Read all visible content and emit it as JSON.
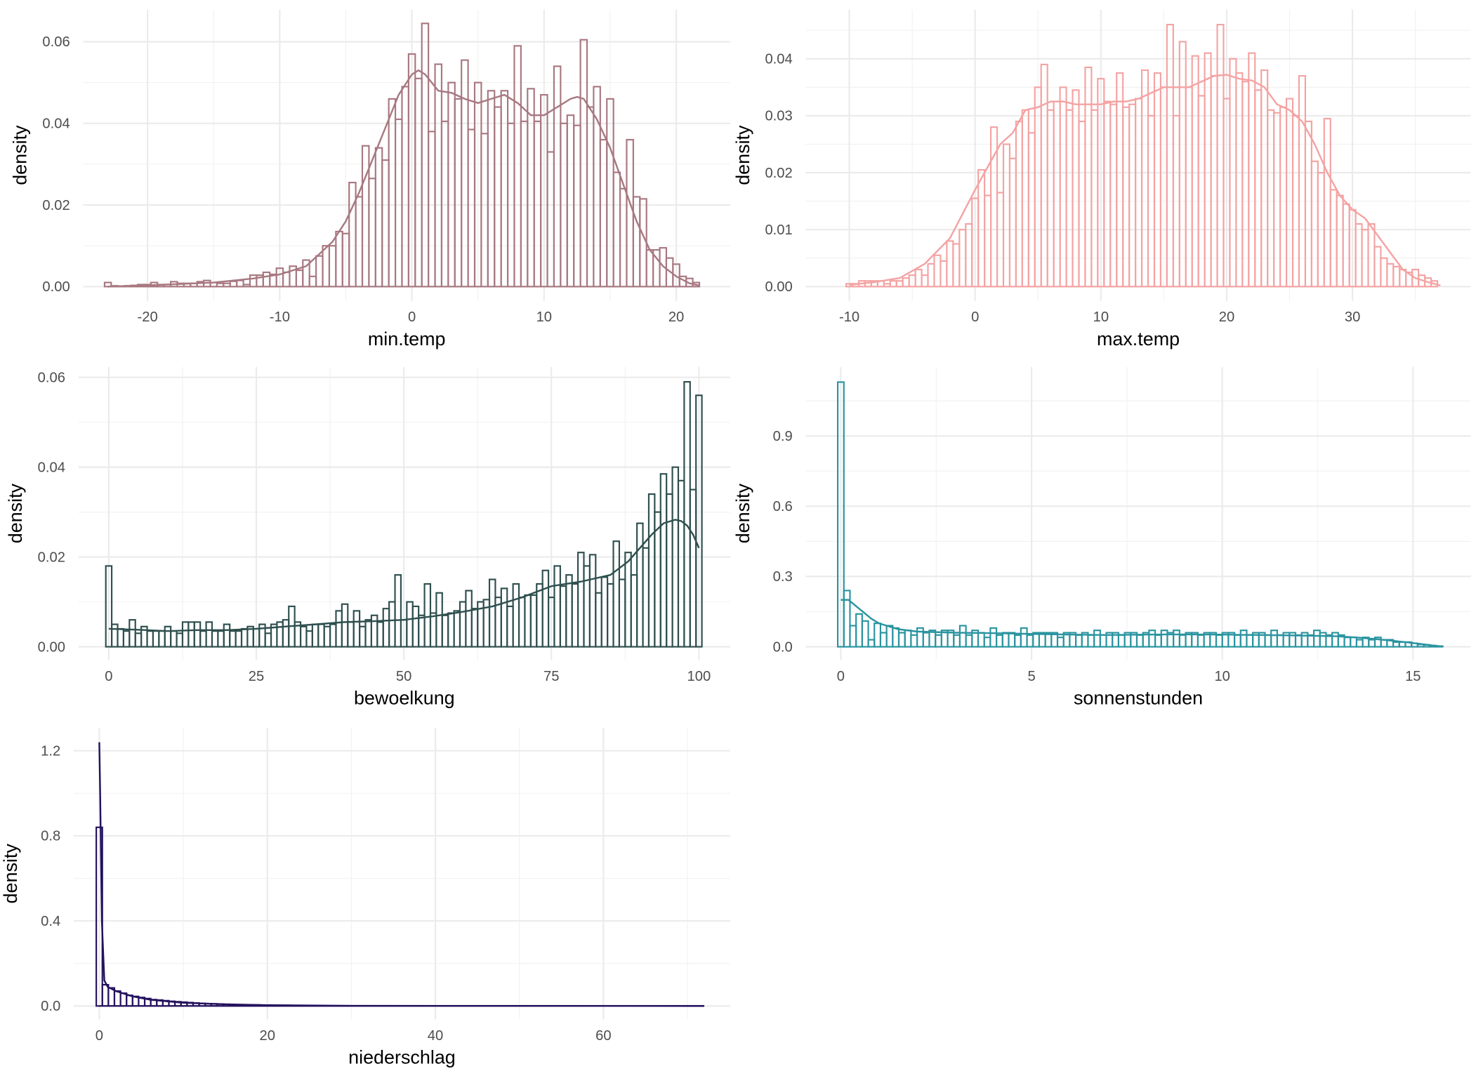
{
  "chart_data": [
    {
      "type": "histogram+density",
      "xlabel": "min.temp",
      "ylabel": "density",
      "color": "#a87880",
      "x_ticks": [
        -20,
        -10,
        0,
        10,
        20
      ],
      "x_tick_labels": [
        "-20",
        "-10",
        "0",
        "10",
        "20"
      ],
      "y_ticks": [
        0,
        0.02,
        0.04,
        0.06
      ],
      "y_tick_labels": [
        "0.00",
        "0.02",
        "0.04",
        "0.06"
      ],
      "bin_start": -23.25,
      "bin_width": 0.5,
      "values": [
        0.001,
        0.0002,
        0.0001,
        0.0002,
        0.0003,
        0.0005,
        0.0005,
        0.001,
        0.0005,
        0.0005,
        0.0012,
        0.0008,
        0.0008,
        0.0008,
        0.0012,
        0.0015,
        0.001,
        0.0008,
        0.0008,
        0.0013,
        0.0015,
        0.0005,
        0.0028,
        0.0028,
        0.0035,
        0.003,
        0.0045,
        0.0035,
        0.005,
        0.004,
        0.0065,
        0.0025,
        0.0075,
        0.01,
        0.01,
        0.0135,
        0.013,
        0.0255,
        0.022,
        0.0345,
        0.0265,
        0.034,
        0.031,
        0.046,
        0.041,
        0.049,
        0.057,
        0.051,
        0.0645,
        0.038,
        0.0545,
        0.0405,
        0.05,
        0.046,
        0.0555,
        0.0385,
        0.05,
        0.0375,
        0.048,
        0.044,
        0.048,
        0.04,
        0.059,
        0.0405,
        0.0485,
        0.0405,
        0.047,
        0.033,
        0.054,
        0.04,
        0.042,
        0.0395,
        0.0605,
        0.044,
        0.049,
        0.036,
        0.046,
        0.028,
        0.024,
        0.036,
        0.022,
        0.0215,
        0.009,
        0.009,
        0.0095,
        0.007,
        0.0055,
        0.0025,
        0.002,
        0.001
      ],
      "density_curve": [
        [
          -23,
          0
        ],
        [
          -20,
          0.0003
        ],
        [
          -15,
          0.001
        ],
        [
          -12,
          0.002
        ],
        [
          -10,
          0.003
        ],
        [
          -8,
          0.005
        ],
        [
          -7,
          0.008
        ],
        [
          -6,
          0.011
        ],
        [
          -5,
          0.016
        ],
        [
          -4,
          0.023
        ],
        [
          -3,
          0.031
        ],
        [
          -2,
          0.039
        ],
        [
          -1,
          0.047
        ],
        [
          0,
          0.052
        ],
        [
          0.5,
          0.053
        ],
        [
          1,
          0.052
        ],
        [
          2,
          0.048
        ],
        [
          3,
          0.0475
        ],
        [
          4,
          0.046
        ],
        [
          5,
          0.045
        ],
        [
          6,
          0.046
        ],
        [
          7,
          0.047
        ],
        [
          8,
          0.045
        ],
        [
          9,
          0.042
        ],
        [
          10,
          0.042
        ],
        [
          11,
          0.044
        ],
        [
          12,
          0.046
        ],
        [
          12.5,
          0.0465
        ],
        [
          13,
          0.046
        ],
        [
          14,
          0.041
        ],
        [
          15,
          0.034
        ],
        [
          16,
          0.025
        ],
        [
          17,
          0.016
        ],
        [
          18,
          0.009
        ],
        [
          19,
          0.005
        ],
        [
          20,
          0.0025
        ],
        [
          21,
          0.0008
        ],
        [
          21.7,
          0.0003
        ]
      ]
    },
    {
      "type": "histogram+density",
      "xlabel": "max.temp",
      "ylabel": "density",
      "color": "#f4a3a3",
      "x_ticks": [
        -10,
        0,
        10,
        20,
        30
      ],
      "x_tick_labels": [
        "-10",
        "0",
        "10",
        "20",
        "30"
      ],
      "y_ticks": [
        0,
        0.01,
        0.02,
        0.03,
        0.04
      ],
      "y_tick_labels": [
        "0.00",
        "0.01",
        "0.02",
        "0.03",
        "0.04"
      ],
      "bin_start": -10.25,
      "bin_width": 0.5,
      "values": [
        0.0005,
        0.0005,
        0.001,
        0.001,
        0.001,
        0.001,
        0.0005,
        0.001,
        0.001,
        0.0015,
        0.002,
        0.003,
        0.002,
        0.004,
        0.0055,
        0.0045,
        0.008,
        0.0075,
        0.01,
        0.011,
        0.0155,
        0.0205,
        0.016,
        0.028,
        0.0165,
        0.025,
        0.0225,
        0.029,
        0.031,
        0.027,
        0.035,
        0.039,
        0.031,
        0.0325,
        0.035,
        0.031,
        0.0345,
        0.029,
        0.0385,
        0.031,
        0.0365,
        0.0325,
        0.032,
        0.0375,
        0.0315,
        0.032,
        0.033,
        0.038,
        0.03,
        0.0375,
        0.035,
        0.046,
        0.03,
        0.043,
        0.035,
        0.0405,
        0.0335,
        0.041,
        0.037,
        0.046,
        0.033,
        0.04,
        0.0375,
        0.036,
        0.041,
        0.0345,
        0.038,
        0.031,
        0.0305,
        0.0315,
        0.033,
        0.03,
        0.037,
        0.029,
        0.022,
        0.02,
        0.0295,
        0.017,
        0.016,
        0.0145,
        0.0135,
        0.011,
        0.01,
        0.011,
        0.007,
        0.005,
        0.004,
        0.0035,
        0.003,
        0.0025,
        0.003,
        0.002,
        0.0015,
        0.001
      ],
      "density_curve": [
        [
          -10,
          0.0003
        ],
        [
          -8,
          0.0008
        ],
        [
          -6,
          0.0015
        ],
        [
          -4,
          0.004
        ],
        [
          -2,
          0.0085
        ],
        [
          0,
          0.017
        ],
        [
          1,
          0.021
        ],
        [
          2,
          0.025
        ],
        [
          3,
          0.027
        ],
        [
          4,
          0.031
        ],
        [
          5,
          0.0315
        ],
        [
          6,
          0.0325
        ],
        [
          7,
          0.0325
        ],
        [
          8,
          0.032
        ],
        [
          9,
          0.032
        ],
        [
          10,
          0.032
        ],
        [
          11,
          0.0325
        ],
        [
          12,
          0.0325
        ],
        [
          13,
          0.033
        ],
        [
          14,
          0.034
        ],
        [
          15,
          0.035
        ],
        [
          16,
          0.035
        ],
        [
          17,
          0.035
        ],
        [
          18,
          0.036
        ],
        [
          19,
          0.037
        ],
        [
          20,
          0.0372
        ],
        [
          21,
          0.0365
        ],
        [
          22,
          0.0362
        ],
        [
          23,
          0.035
        ],
        [
          24,
          0.032
        ],
        [
          25,
          0.031
        ],
        [
          26,
          0.029
        ],
        [
          27,
          0.025
        ],
        [
          28,
          0.02
        ],
        [
          29,
          0.016
        ],
        [
          30,
          0.0135
        ],
        [
          31,
          0.012
        ],
        [
          32,
          0.009
        ],
        [
          33,
          0.006
        ],
        [
          34,
          0.003
        ],
        [
          35,
          0.0015
        ],
        [
          36,
          0.0008
        ],
        [
          37,
          0.0002
        ]
      ]
    },
    {
      "type": "histogram+density",
      "xlabel": "bewoelkung",
      "ylabel": "density",
      "color": "#2f4f4f",
      "x_ticks": [
        0,
        25,
        50,
        75,
        100
      ],
      "x_tick_labels": [
        "0",
        "25",
        "50",
        "75",
        "100"
      ],
      "y_ticks": [
        0,
        0.02,
        0.04,
        0.06
      ],
      "y_tick_labels": [
        "0.00",
        "0.02",
        "0.04",
        "0.06"
      ],
      "bin_start": -0.5,
      "bin_width": 1,
      "values": [
        0.018,
        0.005,
        0.004,
        0.0035,
        0.006,
        0.003,
        0.0045,
        0.0035,
        0.0035,
        0.0035,
        0.0045,
        0.0035,
        0.003,
        0.0055,
        0.0055,
        0.0055,
        0.0035,
        0.0055,
        0.0035,
        0.0035,
        0.005,
        0.0035,
        0.0035,
        0.004,
        0.0045,
        0.004,
        0.005,
        0.003,
        0.005,
        0.0055,
        0.006,
        0.009,
        0.0055,
        0.0045,
        0.0035,
        0.005,
        0.005,
        0.0045,
        0.005,
        0.008,
        0.0095,
        0.0055,
        0.008,
        0.0045,
        0.006,
        0.007,
        0.0055,
        0.0085,
        0.01,
        0.016,
        0.006,
        0.01,
        0.009,
        0.007,
        0.014,
        0.0075,
        0.012,
        0.007,
        0.0075,
        0.008,
        0.01,
        0.0125,
        0.0085,
        0.01,
        0.0105,
        0.015,
        0.011,
        0.013,
        0.009,
        0.014,
        0.011,
        0.0115,
        0.0115,
        0.014,
        0.017,
        0.011,
        0.018,
        0.0135,
        0.016,
        0.014,
        0.021,
        0.018,
        0.0205,
        0.012,
        0.0155,
        0.014,
        0.0235,
        0.015,
        0.021,
        0.016,
        0.0275,
        0.022,
        0.034,
        0.03,
        0.0385,
        0.034,
        0.04,
        0.037,
        0.059,
        0.035,
        0.056
      ],
      "density_curve": [
        [
          0,
          0.004
        ],
        [
          5,
          0.0038
        ],
        [
          10,
          0.0035
        ],
        [
          15,
          0.0037
        ],
        [
          20,
          0.0037
        ],
        [
          25,
          0.004
        ],
        [
          30,
          0.0045
        ],
        [
          35,
          0.005
        ],
        [
          40,
          0.0055
        ],
        [
          45,
          0.0057
        ],
        [
          50,
          0.006
        ],
        [
          55,
          0.0068
        ],
        [
          60,
          0.0078
        ],
        [
          65,
          0.009
        ],
        [
          70,
          0.011
        ],
        [
          75,
          0.0135
        ],
        [
          80,
          0.0145
        ],
        [
          85,
          0.016
        ],
        [
          88,
          0.019
        ],
        [
          90,
          0.022
        ],
        [
          92,
          0.025
        ],
        [
          94,
          0.0275
        ],
        [
          96,
          0.0283
        ],
        [
          97,
          0.028
        ],
        [
          98,
          0.027
        ],
        [
          99,
          0.025
        ],
        [
          100,
          0.022
        ]
      ]
    },
    {
      "type": "histogram+density",
      "xlabel": "sonnenstunden",
      "ylabel": "density",
      "color": "#2a94a0",
      "x_ticks": [
        0,
        5,
        10,
        15
      ],
      "x_tick_labels": [
        "0",
        "5",
        "10",
        "15"
      ],
      "y_ticks": [
        0,
        0.3,
        0.6,
        0.9
      ],
      "y_tick_labels": [
        "0.0",
        "0.3",
        "0.6",
        "0.9"
      ],
      "bin_start": -0.08,
      "bin_width": 0.16,
      "values": [
        1.13,
        0.24,
        0.09,
        0.14,
        0.11,
        0.03,
        0.1,
        0.06,
        0.09,
        0.08,
        0.06,
        0.07,
        0.05,
        0.08,
        0.06,
        0.07,
        0.05,
        0.07,
        0.07,
        0.05,
        0.09,
        0.05,
        0.07,
        0.06,
        0.04,
        0.08,
        0.05,
        0.06,
        0.06,
        0.05,
        0.08,
        0.05,
        0.06,
        0.06,
        0.06,
        0.06,
        0.04,
        0.06,
        0.06,
        0.05,
        0.06,
        0.05,
        0.07,
        0.05,
        0.06,
        0.06,
        0.05,
        0.06,
        0.06,
        0.05,
        0.06,
        0.07,
        0.05,
        0.07,
        0.06,
        0.07,
        0.05,
        0.06,
        0.06,
        0.05,
        0.06,
        0.06,
        0.05,
        0.06,
        0.06,
        0.05,
        0.07,
        0.05,
        0.06,
        0.06,
        0.05,
        0.07,
        0.05,
        0.06,
        0.06,
        0.05,
        0.06,
        0.05,
        0.07,
        0.06,
        0.05,
        0.06,
        0.05,
        0.04,
        0.04,
        0.03,
        0.04,
        0.03,
        0.04,
        0.03,
        0.03,
        0.02,
        0.02,
        0.02,
        0.015,
        0.01,
        0.008,
        0.005,
        0.003
      ],
      "density_curve": [
        [
          0,
          0.2
        ],
        [
          0.2,
          0.2
        ],
        [
          0.5,
          0.16
        ],
        [
          0.8,
          0.12
        ],
        [
          1,
          0.1
        ],
        [
          1.5,
          0.075
        ],
        [
          2,
          0.065
        ],
        [
          3,
          0.06
        ],
        [
          4,
          0.058
        ],
        [
          5,
          0.055
        ],
        [
          6,
          0.052
        ],
        [
          7,
          0.05
        ],
        [
          8,
          0.052
        ],
        [
          9,
          0.053
        ],
        [
          10,
          0.052
        ],
        [
          11,
          0.05
        ],
        [
          12,
          0.048
        ],
        [
          13,
          0.045
        ],
        [
          13.5,
          0.04
        ],
        [
          14,
          0.033
        ],
        [
          14.5,
          0.025
        ],
        [
          15,
          0.016
        ],
        [
          15.5,
          0.006
        ],
        [
          15.8,
          0.001
        ]
      ]
    },
    {
      "type": "histogram+density",
      "xlabel": "niederschlag",
      "ylabel": "density",
      "color": "#24125e",
      "x_ticks": [
        0,
        20,
        40,
        60
      ],
      "x_tick_labels": [
        "0",
        "20",
        "40",
        "60"
      ],
      "y_ticks": [
        0,
        0.4,
        0.8,
        1.2
      ],
      "y_tick_labels": [
        "0.0",
        "0.4",
        "0.8",
        "1.2"
      ],
      "x_range": [
        0,
        72
      ],
      "bin_start": -0.36,
      "bin_width": 0.72,
      "values": [
        0.84,
        0.1,
        0.085,
        0.07,
        0.06,
        0.05,
        0.045,
        0.04,
        0.035,
        0.03,
        0.028,
        0.025,
        0.022,
        0.02,
        0.018,
        0.016,
        0.014,
        0.012,
        0.011,
        0.01,
        0.009,
        0.008,
        0.007,
        0.006,
        0.006,
        0.005,
        0.005,
        0.004,
        0.004,
        0.003,
        0.003,
        0.003,
        0.002,
        0.002,
        0.002,
        0.002,
        0.001,
        0.001,
        0.001,
        0.001
      ],
      "density_curve": [
        [
          0,
          1.24
        ],
        [
          0.1,
          1.0
        ],
        [
          0.3,
          0.4
        ],
        [
          0.6,
          0.12
        ],
        [
          1,
          0.09
        ],
        [
          2,
          0.07
        ],
        [
          4,
          0.045
        ],
        [
          6,
          0.03
        ],
        [
          10,
          0.015
        ],
        [
          15,
          0.008
        ],
        [
          20,
          0.004
        ],
        [
          30,
          0.001
        ],
        [
          72,
          0
        ]
      ]
    }
  ]
}
